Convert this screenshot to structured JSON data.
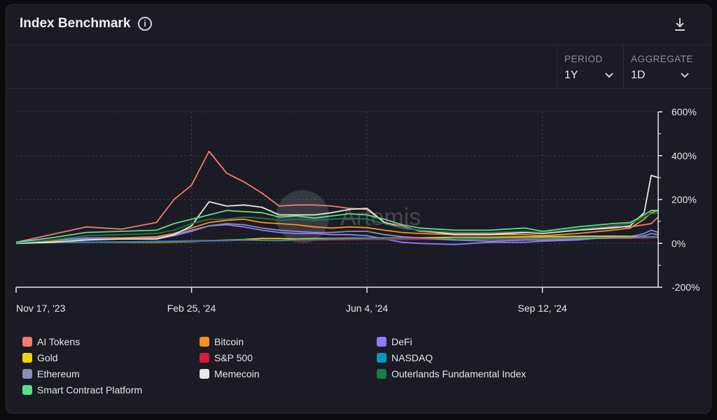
{
  "header": {
    "title": "Index Benchmark",
    "info_icon": "info-icon",
    "download_icon": "download-icon"
  },
  "controls": {
    "period": {
      "label": "PERIOD",
      "value": "1Y"
    },
    "aggregate": {
      "label": "AGGREGATE",
      "value": "1D"
    }
  },
  "watermark": "Artemis",
  "colors": {
    "background": "#1b1b25",
    "grid": "#3a3a48",
    "axis": "#e6e6ea"
  },
  "chart_data": {
    "type": "line",
    "x_tick_labels": [
      "Nov 17, '23",
      "Feb 25, '24",
      "Jun 4, '24",
      "Sep 12, '24"
    ],
    "y_tick_labels": [
      "600%",
      "400%",
      "200%",
      "0%",
      "-200%"
    ],
    "y_ticks": [
      600,
      400,
      200,
      0,
      -200
    ],
    "x_ticks": [
      "2023-11-17",
      "2024-02-25",
      "2024-06-04",
      "2024-09-12"
    ],
    "x_range": [
      "2023-11-17",
      "2024-11-17"
    ],
    "ylim": [
      -200,
      600
    ],
    "y_axis_position": "right",
    "grid": true,
    "legend_position": "bottom",
    "x": [
      "2023-11-17",
      "2023-12-07",
      "2023-12-27",
      "2024-01-16",
      "2024-02-05",
      "2024-02-15",
      "2024-02-25",
      "2024-03-06",
      "2024-03-16",
      "2024-03-26",
      "2024-04-05",
      "2024-04-15",
      "2024-04-25",
      "2024-05-05",
      "2024-05-15",
      "2024-05-25",
      "2024-06-04",
      "2024-06-14",
      "2024-06-24",
      "2024-07-04",
      "2024-07-24",
      "2024-08-13",
      "2024-09-02",
      "2024-09-12",
      "2024-10-02",
      "2024-10-22",
      "2024-11-01",
      "2024-11-09",
      "2024-11-13",
      "2024-11-17"
    ],
    "series": [
      {
        "name": "AI Tokens",
        "color": "#f07c72",
        "values": [
          5,
          40,
          75,
          65,
          95,
          200,
          265,
          420,
          320,
          280,
          230,
          170,
          175,
          175,
          170,
          160,
          155,
          95,
          80,
          55,
          45,
          45,
          50,
          45,
          60,
          75,
          75,
          85,
          90,
          120
        ]
      },
      {
        "name": "Bitcoin",
        "color": "#f7931a",
        "values": [
          2,
          10,
          25,
          25,
          30,
          45,
          70,
          95,
          105,
          110,
          95,
          90,
          85,
          75,
          70,
          75,
          72,
          60,
          50,
          45,
          40,
          40,
          40,
          35,
          45,
          60,
          70,
          110,
          140,
          150
        ]
      },
      {
        "name": "DeFi",
        "color": "#8b7cff",
        "values": [
          0,
          15,
          25,
          20,
          20,
          35,
          55,
          80,
          85,
          75,
          60,
          50,
          45,
          45,
          40,
          40,
          35,
          20,
          5,
          0,
          -5,
          5,
          5,
          10,
          15,
          30,
          30,
          45,
          60,
          50
        ]
      },
      {
        "name": "Gold",
        "color": "#f5d20a",
        "values": [
          2,
          4,
          5,
          5,
          5,
          6,
          8,
          12,
          15,
          18,
          22,
          22,
          20,
          22,
          22,
          24,
          24,
          25,
          25,
          26,
          28,
          28,
          30,
          30,
          32,
          33,
          32,
          30,
          30,
          30
        ]
      },
      {
        "name": "S&P 500",
        "color": "#d61c3c",
        "values": [
          1,
          3,
          5,
          6,
          7,
          8,
          9,
          10,
          12,
          14,
          13,
          12,
          14,
          15,
          16,
          17,
          18,
          18,
          18,
          19,
          18,
          18,
          20,
          20,
          22,
          23,
          24,
          24,
          25,
          26
        ]
      },
      {
        "name": "NASDAQ",
        "color": "#0e96bc",
        "values": [
          1,
          4,
          6,
          7,
          9,
          10,
          12,
          13,
          14,
          16,
          14,
          13,
          16,
          18,
          20,
          22,
          23,
          24,
          24,
          25,
          20,
          21,
          23,
          24,
          26,
          27,
          28,
          29,
          30,
          31
        ]
      },
      {
        "name": "Ethereum",
        "color": "#8a8fb6",
        "values": [
          1,
          15,
          20,
          20,
          25,
          40,
          60,
          80,
          90,
          85,
          70,
          60,
          55,
          50,
          50,
          55,
          55,
          40,
          30,
          25,
          15,
          10,
          15,
          15,
          20,
          25,
          25,
          35,
          45,
          40
        ]
      },
      {
        "name": "Memecoin",
        "color": "#e6e6e6",
        "values": [
          0,
          5,
          15,
          20,
          20,
          40,
          80,
          190,
          170,
          175,
          165,
          130,
          130,
          130,
          140,
          155,
          160,
          95,
          70,
          60,
          40,
          40,
          50,
          45,
          60,
          70,
          80,
          140,
          310,
          300
        ]
      },
      {
        "name": "Outerlands Fundamental Index",
        "color": "#1a7a48",
        "values": [
          2,
          15,
          35,
          40,
          45,
          60,
          90,
          110,
          110,
          120,
          115,
          105,
          110,
          105,
          110,
          115,
          110,
          90,
          70,
          60,
          50,
          50,
          55,
          50,
          65,
          80,
          90,
          120,
          135,
          140
        ]
      },
      {
        "name": "Smart Contract Platform",
        "color": "#5fdc8c",
        "values": [
          5,
          25,
          50,
          55,
          60,
          90,
          110,
          130,
          150,
          145,
          140,
          120,
          125,
          115,
          125,
          135,
          130,
          110,
          85,
          70,
          60,
          60,
          70,
          55,
          75,
          90,
          95,
          130,
          150,
          150
        ]
      }
    ]
  }
}
